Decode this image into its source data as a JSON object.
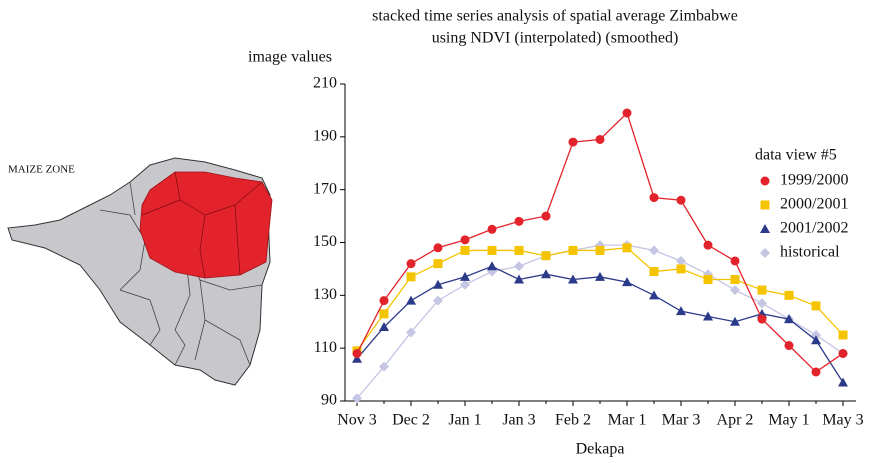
{
  "map_label": "MAIZE ZONE",
  "chart_data": {
    "type": "line",
    "title": "stacked time series analysis of spatial average Zimbabwe",
    "subtitle": "using NDVI (interpolated) (smoothed)",
    "y_label": "image values",
    "x_label": "Dekapa",
    "legend_title": "data view #5",
    "legend": "right",
    "categories": [
      "Nov 3",
      null,
      "Dec 2",
      null,
      "Jan 1",
      null,
      "Jan 3",
      null,
      "Feb 2",
      null,
      "Mar 1",
      null,
      "Mar 3",
      null,
      "Apr 2",
      null,
      "May 1",
      null,
      "May 3"
    ],
    "ylim": [
      90,
      210
    ],
    "yticks": [
      90,
      110,
      130,
      150,
      170,
      190,
      210
    ],
    "series": [
      {
        "name": "1999/2000",
        "color": "#e3232b",
        "marker": "circle",
        "values": [
          108,
          128,
          142,
          148,
          151,
          155,
          158,
          160,
          188,
          189,
          199,
          167,
          166,
          149,
          143,
          121,
          111,
          101,
          108
        ]
      },
      {
        "name": "2000/2001",
        "color": "#f5c400",
        "marker": "square",
        "values": [
          109,
          123,
          137,
          142,
          147,
          147,
          147,
          145,
          147,
          147,
          148,
          139,
          140,
          136,
          136,
          132,
          130,
          126,
          115
        ]
      },
      {
        "name": "2001/2002",
        "color": "#2c3a8a",
        "marker": "triangle",
        "values": [
          106,
          118,
          128,
          134,
          137,
          141,
          136,
          138,
          136,
          137,
          135,
          130,
          124,
          122,
          120,
          123,
          121,
          113,
          97
        ]
      },
      {
        "name": "historical",
        "color": "#c5c5e4",
        "marker": "diamond",
        "values": [
          91,
          103,
          116,
          128,
          134,
          139,
          141,
          145,
          147,
          149,
          149,
          147,
          143,
          138,
          132,
          127,
          121,
          115,
          108
        ]
      }
    ]
  }
}
